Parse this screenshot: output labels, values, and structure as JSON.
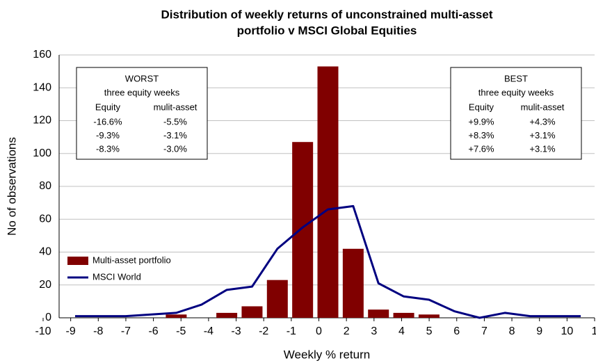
{
  "chart_data": {
    "type": "bar",
    "title": [
      "Distribution of weekly returns of unconstrained multi-asset",
      "portfolio  v MSCI Global Equities"
    ],
    "x_label": "Weekly % return",
    "y_label": "No of observations",
    "categories": [
      null,
      null,
      null,
      null,
      null,
      null,
      null,
      null,
      null,
      null,
      null,
      null,
      null,
      null,
      null,
      null,
      null,
      null,
      null,
      null,
      null
    ],
    "xtick_labels": [
      "-10",
      "-9",
      "-8",
      "-7",
      "-6",
      "-5",
      "-4",
      "-3",
      "-2",
      "-1",
      "0",
      "2",
      "3",
      "4",
      "5",
      "6",
      "7",
      "8",
      "9",
      "10",
      "1"
    ],
    "series": [
      {
        "name": "Multi-asset portfolio",
        "type": "bar",
        "color": "#800000",
        "values": [
          0,
          0,
          0,
          0,
          2,
          0,
          3,
          7,
          23,
          107,
          153,
          42,
          5,
          3,
          2,
          0,
          0,
          0,
          0,
          0,
          0
        ]
      },
      {
        "name": "MSCI World",
        "type": "line",
        "color": "#000080",
        "values": [
          1,
          1,
          1,
          2,
          3,
          8,
          17,
          19,
          42,
          55,
          66,
          68,
          21,
          13,
          11,
          4,
          0,
          3,
          1,
          1,
          1
        ]
      }
    ],
    "ylim": [
      0,
      160
    ],
    "yticks": [
      0,
      20,
      40,
      60,
      80,
      100,
      120,
      140,
      160
    ],
    "grid": true,
    "legend": "lower left",
    "annotations": [
      {
        "title": "WORST",
        "subtitle": "three equity weeks",
        "columns": [
          "Equity",
          "mulit-asset"
        ],
        "rows": [
          [
            "-16.6%",
            "-5.5%"
          ],
          [
            "-9.3%",
            "-3.1%"
          ],
          [
            "-8.3%",
            "-3.0%"
          ]
        ]
      },
      {
        "title": "BEST",
        "subtitle": "three equity weeks",
        "columns": [
          "Equity",
          "mulit-asset"
        ],
        "rows": [
          [
            "+9.9%",
            "+4.3%"
          ],
          [
            "+8.3%",
            "+3.1%"
          ],
          [
            "+7.6%",
            "+3.1%"
          ]
        ]
      }
    ]
  }
}
